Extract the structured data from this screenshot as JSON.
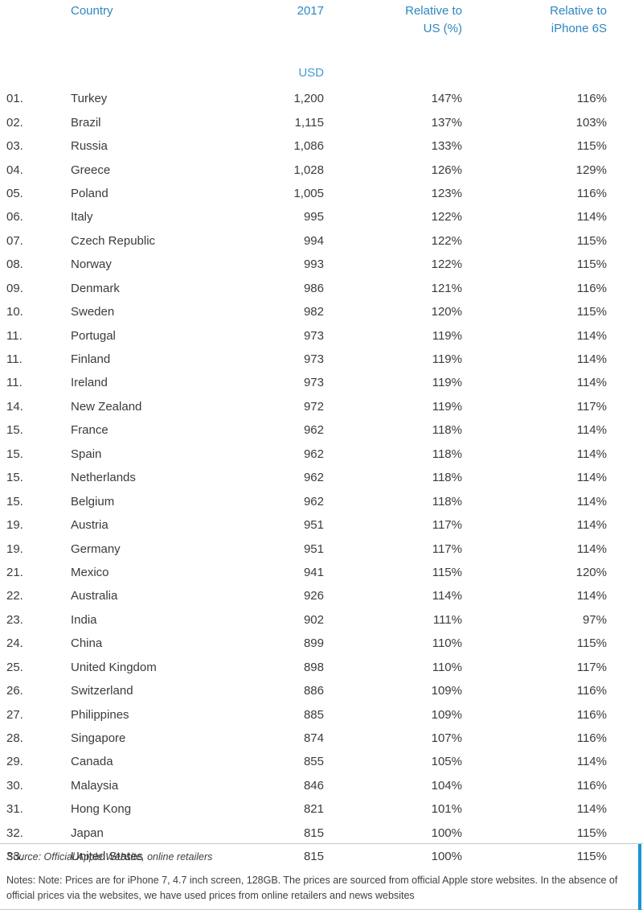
{
  "colors": {
    "header_blue": "#2e86c1",
    "usd_blue": "#449bd0",
    "text": "#3b3b3b",
    "accent_bar": "#1a96d4"
  },
  "table": {
    "headers": {
      "country": "Country",
      "year": "2017",
      "unit": "USD",
      "rel_us_line1": "Relative to",
      "rel_us_line2": "US (%)",
      "rel_6s_line1": "Relative to",
      "rel_6s_line2": "iPhone 6S"
    },
    "rows": [
      {
        "rank": "01.",
        "country": "Turkey",
        "usd": "1,200",
        "rel_us": "147%",
        "rel_6s": "116%"
      },
      {
        "rank": "02.",
        "country": "Brazil",
        "usd": "1,115",
        "rel_us": "137%",
        "rel_6s": "103%"
      },
      {
        "rank": "03.",
        "country": "Russia",
        "usd": "1,086",
        "rel_us": "133%",
        "rel_6s": "115%"
      },
      {
        "rank": "04.",
        "country": "Greece",
        "usd": "1,028",
        "rel_us": "126%",
        "rel_6s": "129%"
      },
      {
        "rank": "05.",
        "country": "Poland",
        "usd": "1,005",
        "rel_us": "123%",
        "rel_6s": "116%"
      },
      {
        "rank": "06.",
        "country": "Italy",
        "usd": "995",
        "rel_us": "122%",
        "rel_6s": "114%"
      },
      {
        "rank": "07.",
        "country": "Czech Republic",
        "usd": "994",
        "rel_us": "122%",
        "rel_6s": "115%"
      },
      {
        "rank": "08.",
        "country": "Norway",
        "usd": "993",
        "rel_us": "122%",
        "rel_6s": "115%"
      },
      {
        "rank": "09.",
        "country": "Denmark",
        "usd": "986",
        "rel_us": "121%",
        "rel_6s": "116%"
      },
      {
        "rank": "10.",
        "country": "Sweden",
        "usd": "982",
        "rel_us": "120%",
        "rel_6s": "115%"
      },
      {
        "rank": "11.",
        "country": "Portugal",
        "usd": "973",
        "rel_us": "119%",
        "rel_6s": "114%"
      },
      {
        "rank": "11.",
        "country": "Finland",
        "usd": "973",
        "rel_us": "119%",
        "rel_6s": "114%"
      },
      {
        "rank": "11.",
        "country": "Ireland",
        "usd": "973",
        "rel_us": "119%",
        "rel_6s": "114%"
      },
      {
        "rank": "14.",
        "country": "New Zealand",
        "usd": "972",
        "rel_us": "119%",
        "rel_6s": "117%"
      },
      {
        "rank": "15.",
        "country": "France",
        "usd": "962",
        "rel_us": "118%",
        "rel_6s": "114%"
      },
      {
        "rank": "15.",
        "country": "Spain",
        "usd": "962",
        "rel_us": "118%",
        "rel_6s": "114%"
      },
      {
        "rank": "15.",
        "country": "Netherlands",
        "usd": "962",
        "rel_us": "118%",
        "rel_6s": "114%"
      },
      {
        "rank": "15.",
        "country": "Belgium",
        "usd": "962",
        "rel_us": "118%",
        "rel_6s": "114%"
      },
      {
        "rank": "19.",
        "country": "Austria",
        "usd": "951",
        "rel_us": "117%",
        "rel_6s": "114%"
      },
      {
        "rank": "19.",
        "country": "Germany",
        "usd": "951",
        "rel_us": "117%",
        "rel_6s": "114%"
      },
      {
        "rank": "21.",
        "country": "Mexico",
        "usd": "941",
        "rel_us": "115%",
        "rel_6s": "120%"
      },
      {
        "rank": "22.",
        "country": "Australia",
        "usd": "926",
        "rel_us": "114%",
        "rel_6s": "114%"
      },
      {
        "rank": "23.",
        "country": "India",
        "usd": "902",
        "rel_us": "111%",
        "rel_6s": "97%"
      },
      {
        "rank": "24.",
        "country": "China",
        "usd": "899",
        "rel_us": "110%",
        "rel_6s": "115%"
      },
      {
        "rank": "25.",
        "country": "United Kingdom",
        "usd": "898",
        "rel_us": "110%",
        "rel_6s": "117%"
      },
      {
        "rank": "26.",
        "country": "Switzerland",
        "usd": "886",
        "rel_us": "109%",
        "rel_6s": "116%"
      },
      {
        "rank": "27.",
        "country": "Philippines",
        "usd": "885",
        "rel_us": "109%",
        "rel_6s": "116%"
      },
      {
        "rank": "28.",
        "country": "Singapore",
        "usd": "874",
        "rel_us": "107%",
        "rel_6s": "116%"
      },
      {
        "rank": "29.",
        "country": "Canada",
        "usd": "855",
        "rel_us": "105%",
        "rel_6s": "114%"
      },
      {
        "rank": "30.",
        "country": "Malaysia",
        "usd": "846",
        "rel_us": "104%",
        "rel_6s": "116%"
      },
      {
        "rank": "31.",
        "country": "Hong Kong",
        "usd": "821",
        "rel_us": "101%",
        "rel_6s": "114%"
      },
      {
        "rank": "32.",
        "country": "Japan",
        "usd": "815",
        "rel_us": "100%",
        "rel_6s": "115%"
      },
      {
        "rank": "33.",
        "country": "United States",
        "usd": "815",
        "rel_us": "100%",
        "rel_6s": "115%"
      }
    ]
  },
  "footer": {
    "source": "Source: Official Apple Website, online retailers",
    "notes": "Notes: Note: Prices are for iPhone 7, 4.7 inch screen, 128GB. The prices are sourced from official Apple store websites. In the absence of official prices via the websites, we have used prices from online retailers and news websites"
  }
}
